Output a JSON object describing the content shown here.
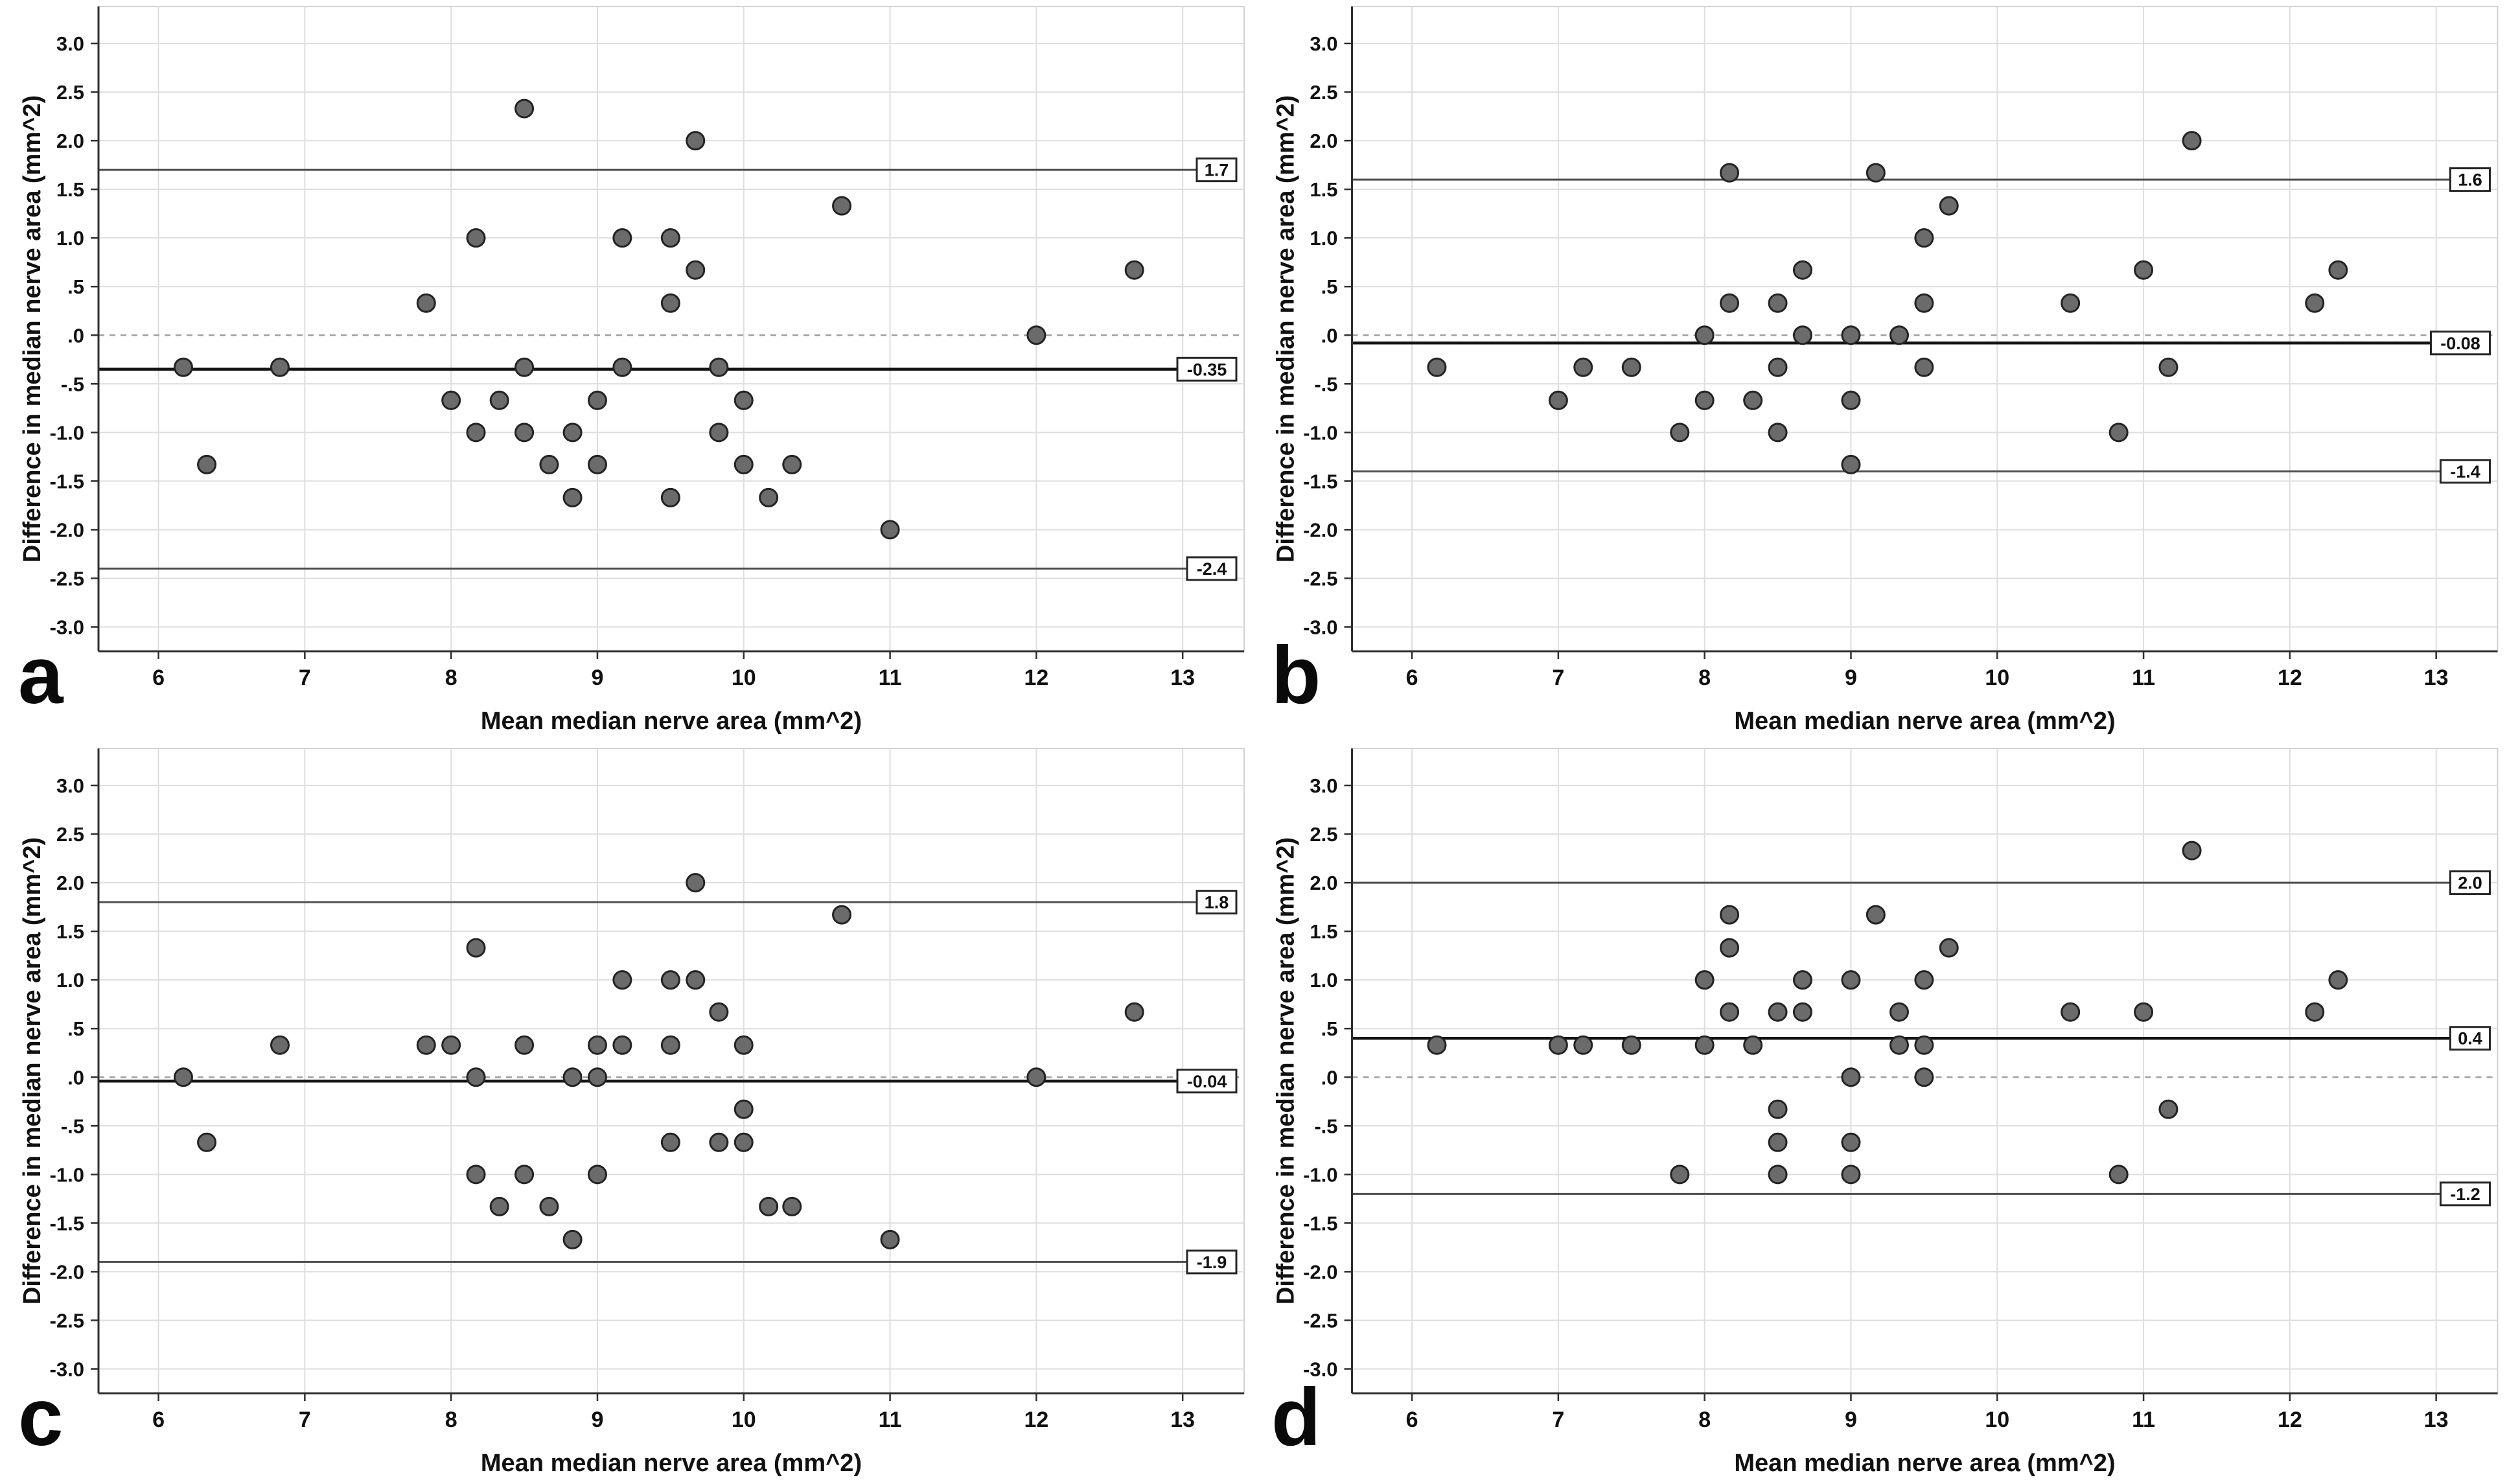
{
  "figure": {
    "background": "#ffffff",
    "rows": 2,
    "cols": 2
  },
  "axes": {
    "x_title": "Mean median nerve area (mm^2)",
    "y_title": "Difference in median nerve area (mm^2)",
    "x_ticks": [
      6,
      7,
      8,
      9,
      10,
      11,
      12,
      13
    ],
    "y_ticks": [
      {
        "value": 3.0,
        "label": "3.0"
      },
      {
        "value": 2.5,
        "label": "2.5"
      },
      {
        "value": 2.0,
        "label": "2.0"
      },
      {
        "value": 1.5,
        "label": "1.5"
      },
      {
        "value": 1.0,
        "label": "1.0"
      },
      {
        "value": 0.5,
        "label": ".5"
      },
      {
        "value": 0.0,
        "label": ".0"
      },
      {
        "value": -0.5,
        "label": "-.5"
      },
      {
        "value": -1.0,
        "label": "-1.0"
      },
      {
        "value": -1.5,
        "label": "-1.5"
      },
      {
        "value": -2.0,
        "label": "-2.0"
      },
      {
        "value": -2.5,
        "label": "-2.5"
      },
      {
        "value": -3.0,
        "label": "-3.0"
      }
    ],
    "x_domain": [
      5.59,
      13.42
    ],
    "y_domain": [
      -3.25,
      3.38
    ],
    "grid": true
  },
  "style": {
    "dot_fill": "#6b6b6b",
    "dot_stroke": "#232323",
    "grid_color": "#dedede",
    "frame_color": "#d2d2d2",
    "axis_color": "#2f2f2f",
    "mean_line_color": "#141414",
    "loa_line_color": "#4d4d4d",
    "zero_line_color": "#9a9a9a",
    "label_box_fill": "#ffffff",
    "label_box_stroke": "#262626",
    "text_color": "#111111"
  },
  "chart_data": [
    {
      "type": "scatter",
      "panel": "a",
      "xlabel": "Mean median nerve area (mm^2)",
      "ylabel": "Difference in median nerve area (mm^2)",
      "zero_reference": 0,
      "mean": -0.35,
      "mean_label": "-0.35",
      "loa_upper": 1.7,
      "loa_upper_label": "1.7",
      "loa_lower": -2.4,
      "loa_lower_label": "-2.4",
      "points": [
        [
          6.17,
          -0.33
        ],
        [
          6.33,
          -1.33
        ],
        [
          6.83,
          -0.33
        ],
        [
          7.83,
          0.33
        ],
        [
          8.0,
          -0.67
        ],
        [
          8.17,
          1.0
        ],
        [
          8.17,
          -1.0
        ],
        [
          8.33,
          -0.67
        ],
        [
          8.5,
          2.33
        ],
        [
          8.5,
          -0.33
        ],
        [
          8.5,
          -1.0
        ],
        [
          8.67,
          -1.33
        ],
        [
          8.83,
          -1.0
        ],
        [
          8.83,
          -1.67
        ],
        [
          9.0,
          -0.67
        ],
        [
          9.0,
          -1.33
        ],
        [
          9.17,
          1.0
        ],
        [
          9.17,
          -0.33
        ],
        [
          9.5,
          1.0
        ],
        [
          9.5,
          0.33
        ],
        [
          9.5,
          -1.67
        ],
        [
          9.67,
          2.0
        ],
        [
          9.67,
          0.67
        ],
        [
          9.83,
          -0.33
        ],
        [
          9.83,
          -1.0
        ],
        [
          10.0,
          -0.67
        ],
        [
          10.0,
          -1.33
        ],
        [
          10.17,
          -1.67
        ],
        [
          10.33,
          -1.33
        ],
        [
          10.67,
          1.33
        ],
        [
          11.0,
          -2.0
        ],
        [
          12.0,
          0.0
        ],
        [
          12.67,
          0.67
        ]
      ]
    },
    {
      "type": "scatter",
      "panel": "b",
      "xlabel": "Mean median nerve area (mm^2)",
      "ylabel": "Difference in median nerve area (mm^2)",
      "zero_reference": 0,
      "mean": -0.08,
      "mean_label": "-0.08",
      "loa_upper": 1.6,
      "loa_upper_label": "1.6",
      "loa_lower": -1.4,
      "loa_lower_label": "-1.4",
      "points": [
        [
          6.17,
          -0.33
        ],
        [
          7.0,
          -0.67
        ],
        [
          7.17,
          -0.33
        ],
        [
          7.5,
          -0.33
        ],
        [
          7.83,
          -1.0
        ],
        [
          8.0,
          0.0
        ],
        [
          8.0,
          -0.67
        ],
        [
          8.17,
          1.67
        ],
        [
          8.17,
          0.33
        ],
        [
          8.33,
          -0.67
        ],
        [
          8.5,
          0.33
        ],
        [
          8.5,
          -0.33
        ],
        [
          8.5,
          -1.0
        ],
        [
          8.67,
          0.67
        ],
        [
          8.67,
          0.0
        ],
        [
          9.0,
          0.0
        ],
        [
          9.0,
          -0.67
        ],
        [
          9.0,
          -1.33
        ],
        [
          9.17,
          1.67
        ],
        [
          9.33,
          0.0
        ],
        [
          9.5,
          1.0
        ],
        [
          9.5,
          0.33
        ],
        [
          9.5,
          -0.33
        ],
        [
          9.67,
          1.33
        ],
        [
          10.5,
          0.33
        ],
        [
          10.83,
          -1.0
        ],
        [
          11.0,
          0.67
        ],
        [
          11.17,
          -0.33
        ],
        [
          11.33,
          2.0
        ],
        [
          12.17,
          0.33
        ],
        [
          12.33,
          0.67
        ]
      ]
    },
    {
      "type": "scatter",
      "panel": "c",
      "xlabel": "Mean median nerve area (mm^2)",
      "ylabel": "Difference in median nerve area (mm^2)",
      "zero_reference": 0,
      "mean": -0.04,
      "mean_label": "-0.04",
      "loa_upper": 1.8,
      "loa_upper_label": "1.8",
      "loa_lower": -1.9,
      "loa_lower_label": "-1.9",
      "points": [
        [
          6.17,
          0.0
        ],
        [
          6.33,
          -0.67
        ],
        [
          6.83,
          0.33
        ],
        [
          7.83,
          0.33
        ],
        [
          8.0,
          0.33
        ],
        [
          8.17,
          1.33
        ],
        [
          8.17,
          0.0
        ],
        [
          8.17,
          -1.0
        ],
        [
          8.33,
          -1.33
        ],
        [
          8.5,
          0.33
        ],
        [
          8.5,
          -1.0
        ],
        [
          8.67,
          -1.33
        ],
        [
          8.83,
          0.0
        ],
        [
          8.83,
          -1.67
        ],
        [
          9.0,
          0.33
        ],
        [
          9.0,
          0.0
        ],
        [
          9.0,
          -1.0
        ],
        [
          9.17,
          1.0
        ],
        [
          9.17,
          0.33
        ],
        [
          9.5,
          1.0
        ],
        [
          9.5,
          0.33
        ],
        [
          9.5,
          -0.67
        ],
        [
          9.67,
          2.0
        ],
        [
          9.67,
          1.0
        ],
        [
          9.83,
          0.67
        ],
        [
          9.83,
          -0.67
        ],
        [
          10.0,
          0.33
        ],
        [
          10.0,
          -0.33
        ],
        [
          10.0,
          -0.67
        ],
        [
          10.17,
          -1.33
        ],
        [
          10.33,
          -1.33
        ],
        [
          10.67,
          1.67
        ],
        [
          11.0,
          -1.67
        ],
        [
          12.0,
          0.0
        ],
        [
          12.67,
          0.67
        ]
      ]
    },
    {
      "type": "scatter",
      "panel": "d",
      "xlabel": "Mean median nerve area (mm^2)",
      "ylabel": "Difference in median nerve area (mm^2)",
      "zero_reference": 0,
      "mean": 0.4,
      "mean_label": "0.4",
      "loa_upper": 2.0,
      "loa_upper_label": "2.0",
      "loa_lower": -1.2,
      "loa_lower_label": "-1.2",
      "points": [
        [
          6.17,
          0.33
        ],
        [
          7.0,
          0.33
        ],
        [
          7.17,
          0.33
        ],
        [
          7.5,
          0.33
        ],
        [
          7.83,
          -1.0
        ],
        [
          8.0,
          1.0
        ],
        [
          8.0,
          0.33
        ],
        [
          8.17,
          1.67
        ],
        [
          8.17,
          1.33
        ],
        [
          8.17,
          0.67
        ],
        [
          8.33,
          0.33
        ],
        [
          8.5,
          0.67
        ],
        [
          8.5,
          -0.33
        ],
        [
          8.5,
          -0.67
        ],
        [
          8.5,
          -1.0
        ],
        [
          8.67,
          1.0
        ],
        [
          8.67,
          0.67
        ],
        [
          9.0,
          1.0
        ],
        [
          9.0,
          0.0
        ],
        [
          9.0,
          -0.67
        ],
        [
          9.0,
          -1.0
        ],
        [
          9.17,
          1.67
        ],
        [
          9.33,
          0.67
        ],
        [
          9.33,
          0.33
        ],
        [
          9.5,
          1.0
        ],
        [
          9.5,
          0.33
        ],
        [
          9.5,
          0.0
        ],
        [
          9.67,
          1.33
        ],
        [
          10.5,
          0.67
        ],
        [
          10.83,
          -1.0
        ],
        [
          11.0,
          0.67
        ],
        [
          11.17,
          -0.33
        ],
        [
          11.33,
          2.33
        ],
        [
          12.17,
          0.67
        ],
        [
          12.33,
          1.0
        ]
      ]
    }
  ]
}
